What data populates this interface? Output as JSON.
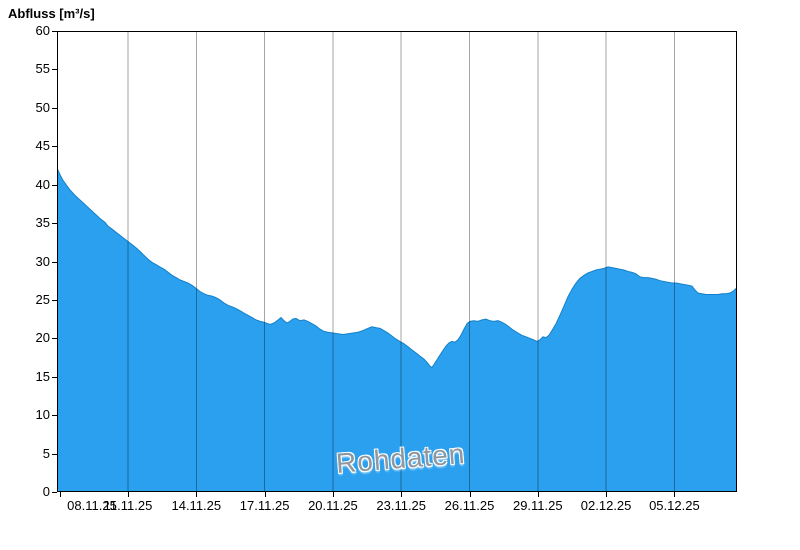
{
  "chart_data": {
    "type": "area",
    "title": "Abfluss [m³/s]",
    "ylabel": "Abfluss [m³/s]",
    "xlabel": "",
    "watermark": "Rohdaten",
    "legend": "none",
    "grid": "vertical-only",
    "ylim": [
      0,
      60
    ],
    "y_ticks": [
      0,
      5,
      10,
      15,
      20,
      25,
      30,
      35,
      40,
      45,
      50,
      55,
      60
    ],
    "x_unit": "days, day 0 = 08.11.25",
    "x_range_days": [
      -0.12,
      29.75
    ],
    "x_ticks": [
      {
        "day": 0,
        "label": "08.11.25"
      },
      {
        "day": 3,
        "label": "11.11.25"
      },
      {
        "day": 6,
        "label": "14.11.25"
      },
      {
        "day": 9,
        "label": "17.11.25"
      },
      {
        "day": 12,
        "label": "20.11.25"
      },
      {
        "day": 15,
        "label": "23.11.25"
      },
      {
        "day": 18,
        "label": "26.11.25"
      },
      {
        "day": 21,
        "label": "29.11.25"
      },
      {
        "day": 24,
        "label": "02.12.25"
      },
      {
        "day": 27,
        "label": "05.12.25"
      }
    ],
    "colors": {
      "fill": "#2aa0ef",
      "line": "#1580c8",
      "grid": "rgba(0,0,0,0.35)",
      "axis": "#000000",
      "watermark": "#8f97a1"
    },
    "series": [
      {
        "name": "Abfluss Rohdaten",
        "unit": "m³/s",
        "points": [
          [
            -0.12,
            42.2
          ],
          [
            0.01,
            41.3
          ],
          [
            0.14,
            40.6
          ],
          [
            0.28,
            40.0
          ],
          [
            0.45,
            39.3
          ],
          [
            0.67,
            38.6
          ],
          [
            0.89,
            38.0
          ],
          [
            1.11,
            37.4
          ],
          [
            1.33,
            36.8
          ],
          [
            1.55,
            36.2
          ],
          [
            1.77,
            35.6
          ],
          [
            1.99,
            35.1
          ],
          [
            2.12,
            34.6
          ],
          [
            2.3,
            34.2
          ],
          [
            2.47,
            33.8
          ],
          [
            2.65,
            33.4
          ],
          [
            2.82,
            33.0
          ],
          [
            3.0,
            32.6
          ],
          [
            3.18,
            32.2
          ],
          [
            3.35,
            31.8
          ],
          [
            3.53,
            31.3
          ],
          [
            3.7,
            30.8
          ],
          [
            3.88,
            30.3
          ],
          [
            4.05,
            29.9
          ],
          [
            4.23,
            29.6
          ],
          [
            4.4,
            29.3
          ],
          [
            4.58,
            29.0
          ],
          [
            4.76,
            28.6
          ],
          [
            4.93,
            28.2
          ],
          [
            5.11,
            27.9
          ],
          [
            5.28,
            27.6
          ],
          [
            5.46,
            27.4
          ],
          [
            5.63,
            27.2
          ],
          [
            5.81,
            26.9
          ],
          [
            5.99,
            26.5
          ],
          [
            6.16,
            26.1
          ],
          [
            6.34,
            25.8
          ],
          [
            6.51,
            25.6
          ],
          [
            6.69,
            25.5
          ],
          [
            6.86,
            25.3
          ],
          [
            7.04,
            25.0
          ],
          [
            7.22,
            24.6
          ],
          [
            7.39,
            24.3
          ],
          [
            7.57,
            24.1
          ],
          [
            7.74,
            23.9
          ],
          [
            7.92,
            23.6
          ],
          [
            8.09,
            23.3
          ],
          [
            8.27,
            23.0
          ],
          [
            8.45,
            22.7
          ],
          [
            8.62,
            22.4
          ],
          [
            8.8,
            22.2
          ],
          [
            8.97,
            22.1
          ],
          [
            9.15,
            21.9
          ],
          [
            9.23,
            21.8
          ],
          [
            9.41,
            22.0
          ],
          [
            9.59,
            22.4
          ],
          [
            9.72,
            22.7
          ],
          [
            9.85,
            22.3
          ],
          [
            9.98,
            22.0
          ],
          [
            10.11,
            22.2
          ],
          [
            10.24,
            22.5
          ],
          [
            10.38,
            22.6
          ],
          [
            10.55,
            22.3
          ],
          [
            10.73,
            22.4
          ],
          [
            10.9,
            22.2
          ],
          [
            11.08,
            21.9
          ],
          [
            11.26,
            21.6
          ],
          [
            11.43,
            21.2
          ],
          [
            11.61,
            20.9
          ],
          [
            11.78,
            20.8
          ],
          [
            12.0,
            20.7
          ],
          [
            12.22,
            20.6
          ],
          [
            12.44,
            20.5
          ],
          [
            12.66,
            20.6
          ],
          [
            12.88,
            20.7
          ],
          [
            13.1,
            20.8
          ],
          [
            13.32,
            21.0
          ],
          [
            13.54,
            21.3
          ],
          [
            13.71,
            21.5
          ],
          [
            13.89,
            21.4
          ],
          [
            14.07,
            21.3
          ],
          [
            14.24,
            21.0
          ],
          [
            14.42,
            20.7
          ],
          [
            14.59,
            20.3
          ],
          [
            14.77,
            19.9
          ],
          [
            14.94,
            19.6
          ],
          [
            15.12,
            19.3
          ],
          [
            15.3,
            18.9
          ],
          [
            15.47,
            18.5
          ],
          [
            15.65,
            18.1
          ],
          [
            15.82,
            17.7
          ],
          [
            16.0,
            17.3
          ],
          [
            16.13,
            16.9
          ],
          [
            16.26,
            16.4
          ],
          [
            16.35,
            16.2
          ],
          [
            16.44,
            16.6
          ],
          [
            16.57,
            17.2
          ],
          [
            16.7,
            17.8
          ],
          [
            16.83,
            18.4
          ],
          [
            16.97,
            19.0
          ],
          [
            17.1,
            19.4
          ],
          [
            17.23,
            19.6
          ],
          [
            17.36,
            19.5
          ],
          [
            17.49,
            19.8
          ],
          [
            17.62,
            20.4
          ],
          [
            17.76,
            21.2
          ],
          [
            17.89,
            21.9
          ],
          [
            18.02,
            22.2
          ],
          [
            18.19,
            22.3
          ],
          [
            18.37,
            22.2
          ],
          [
            18.55,
            22.4
          ],
          [
            18.72,
            22.5
          ],
          [
            18.9,
            22.3
          ],
          [
            19.07,
            22.2
          ],
          [
            19.25,
            22.3
          ],
          [
            19.42,
            22.1
          ],
          [
            19.6,
            21.8
          ],
          [
            19.78,
            21.4
          ],
          [
            19.95,
            21.0
          ],
          [
            20.13,
            20.7
          ],
          [
            20.3,
            20.4
          ],
          [
            20.48,
            20.2
          ],
          [
            20.65,
            20.0
          ],
          [
            20.83,
            19.8
          ],
          [
            20.96,
            19.6
          ],
          [
            21.09,
            19.8
          ],
          [
            21.23,
            20.2
          ],
          [
            21.36,
            20.1
          ],
          [
            21.49,
            20.4
          ],
          [
            21.62,
            21.0
          ],
          [
            21.8,
            21.9
          ],
          [
            21.97,
            23.0
          ],
          [
            22.15,
            24.2
          ],
          [
            22.32,
            25.4
          ],
          [
            22.5,
            26.4
          ],
          [
            22.68,
            27.2
          ],
          [
            22.85,
            27.8
          ],
          [
            23.03,
            28.2
          ],
          [
            23.2,
            28.5
          ],
          [
            23.38,
            28.7
          ],
          [
            23.55,
            28.9
          ],
          [
            23.73,
            29.0
          ],
          [
            23.91,
            29.1
          ],
          [
            24.08,
            29.3
          ],
          [
            24.26,
            29.2
          ],
          [
            24.43,
            29.1
          ],
          [
            24.61,
            29.0
          ],
          [
            24.78,
            28.9
          ],
          [
            24.96,
            28.7
          ],
          [
            25.14,
            28.6
          ],
          [
            25.31,
            28.4
          ],
          [
            25.49,
            28.0
          ],
          [
            25.66,
            27.9
          ],
          [
            25.84,
            27.9
          ],
          [
            26.01,
            27.8
          ],
          [
            26.19,
            27.7
          ],
          [
            26.37,
            27.5
          ],
          [
            26.54,
            27.4
          ],
          [
            26.72,
            27.3
          ],
          [
            26.89,
            27.2
          ],
          [
            27.07,
            27.2
          ],
          [
            27.24,
            27.1
          ],
          [
            27.42,
            27.0
          ],
          [
            27.6,
            26.9
          ],
          [
            27.77,
            26.8
          ],
          [
            27.9,
            26.3
          ],
          [
            28.03,
            25.9
          ],
          [
            28.21,
            25.8
          ],
          [
            28.39,
            25.7
          ],
          [
            28.56,
            25.7
          ],
          [
            28.74,
            25.7
          ],
          [
            28.91,
            25.7
          ],
          [
            29.09,
            25.8
          ],
          [
            29.27,
            25.8
          ],
          [
            29.44,
            25.9
          ],
          [
            29.57,
            26.1
          ],
          [
            29.75,
            26.6
          ]
        ]
      }
    ]
  }
}
